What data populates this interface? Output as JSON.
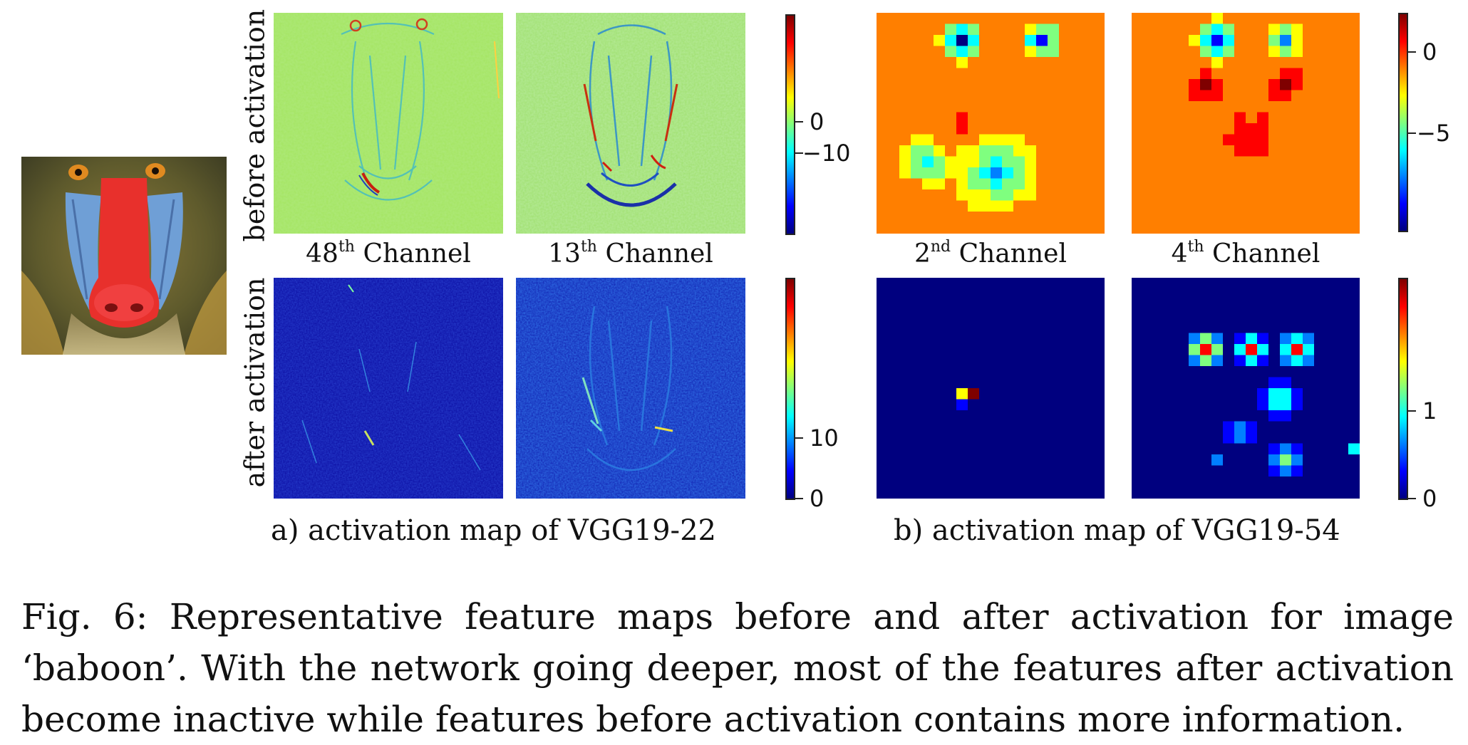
{
  "figure": {
    "input_image": {
      "name": "baboon"
    },
    "row_labels": {
      "before": "before activation",
      "after": "after activation"
    },
    "panel_a": {
      "channels": [
        {
          "num": "48",
          "sup": "th",
          "word": "Channel"
        },
        {
          "num": "13",
          "sup": "th",
          "word": "Channel"
        }
      ],
      "before_ticks": [
        "0",
        "−10"
      ],
      "after_ticks": [
        "10",
        "0"
      ],
      "caption": "a) activation map of VGG19-22"
    },
    "panel_b": {
      "channels": [
        {
          "num": "2",
          "sup": "nd",
          "word": "Channel"
        },
        {
          "num": "4",
          "sup": "th",
          "word": "Channel"
        }
      ],
      "before_ticks": [
        "0",
        "−5"
      ],
      "after_ticks": [
        "1",
        "0"
      ],
      "caption": "b) activation map of VGG19-54"
    },
    "caption": "Fig. 6: Representative feature maps before and after activation for image ‘baboon’. With the network going deeper, most of the features after activation become inactive while features before activation contains more information."
  },
  "colors": {
    "jet": [
      "#00007f",
      "#0000ff",
      "#007fff",
      "#00ffff",
      "#7fff7f",
      "#ffff00",
      "#ff7f00",
      "#ff0000",
      "#7f0000"
    ],
    "deep_blue": "#0a0aa0",
    "baboon_red": "#e8302c",
    "baboon_blue": "#6f9fd6"
  }
}
